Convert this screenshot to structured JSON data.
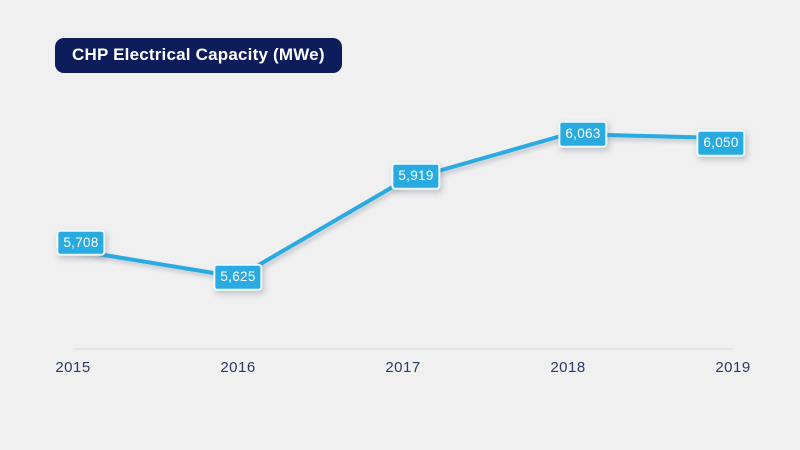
{
  "title": "CHP Electrical Capacity (MWe)",
  "colors": {
    "background": "#f0f0f1",
    "title_bg": "#0d1c5b",
    "title_text": "#ffffff",
    "line": "#29abe2",
    "label_bg": "#29abe2",
    "label_text": "#ffffff",
    "axis_line": "#e4e4e6",
    "tick_text": "#2b3a63"
  },
  "chart_data": {
    "type": "line",
    "title": "CHP Electrical Capacity (MWe)",
    "categories": [
      "2015",
      "2016",
      "2017",
      "2018",
      "2019"
    ],
    "values": [
      5708,
      5625,
      5919,
      6063,
      6050
    ],
    "value_labels": [
      "5,708",
      "5,625",
      "5,919",
      "6,063",
      "6,050"
    ],
    "xlabel": "",
    "ylabel": "",
    "legend": "none",
    "grid": false,
    "ylim": [
      5450,
      6250
    ]
  }
}
